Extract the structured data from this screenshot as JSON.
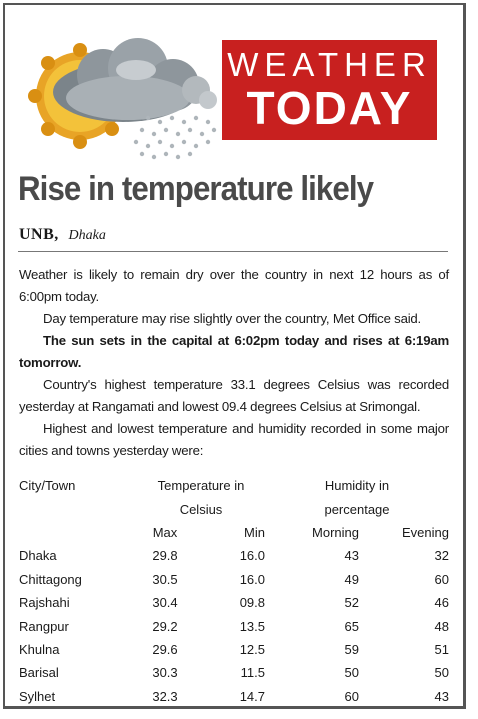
{
  "badge": {
    "line1": "WEATHER",
    "line2": "TODAY"
  },
  "headline": "Rise in temperature likely",
  "byline": {
    "agency": "UNB,",
    "city": "Dhaka"
  },
  "paragraphs": [
    "Weather is likely to remain dry over the country in next 12 hours as of 6:00pm today.",
    "Day temperature may rise slightly over the country, Met Office said.",
    "The sun sets in the capital at 6:02pm today and rises at 6:19am tomorrow.",
    "Country's highest temperature 33.1 degrees Celsius was recorded yesterday at Rangamati and lowest 09.4 degrees Celsius at Srimongal.",
    "Highest and lowest temperature and humidity recorded in some major cities and towns yesterday were:"
  ],
  "table": {
    "city_header": "City/Town",
    "temp_header_1": "Temperature in",
    "temp_header_2": "Celsius",
    "hum_header_1": "Humidity in",
    "hum_header_2": "percentage",
    "sub_headers": [
      "Max",
      "Min",
      "Morning",
      "Evening"
    ],
    "rows": [
      [
        "Dhaka",
        "29.8",
        "16.0",
        "43",
        "32"
      ],
      [
        "Chittagong",
        "30.5",
        "16.0",
        "49",
        "60"
      ],
      [
        "Rajshahi",
        "30.4",
        "09.8",
        "52",
        "46"
      ],
      [
        "Rangpur",
        "29.2",
        "13.5",
        "65",
        "48"
      ],
      [
        "Khulna",
        "29.6",
        "12.5",
        "59",
        "51"
      ],
      [
        "Barisal",
        "30.3",
        "11.5",
        "50",
        "50"
      ],
      [
        "Sylhet",
        "32.3",
        "14.7",
        "60",
        "43"
      ]
    ]
  },
  "colors": {
    "badge_red": "#c8201f",
    "sun_orange": "#f0a91c",
    "cloud_gray": "#8e969c",
    "headline_gray": "#4a4a4a"
  },
  "icons": [
    "sun-icon",
    "cloud-icon",
    "rain-icon"
  ]
}
